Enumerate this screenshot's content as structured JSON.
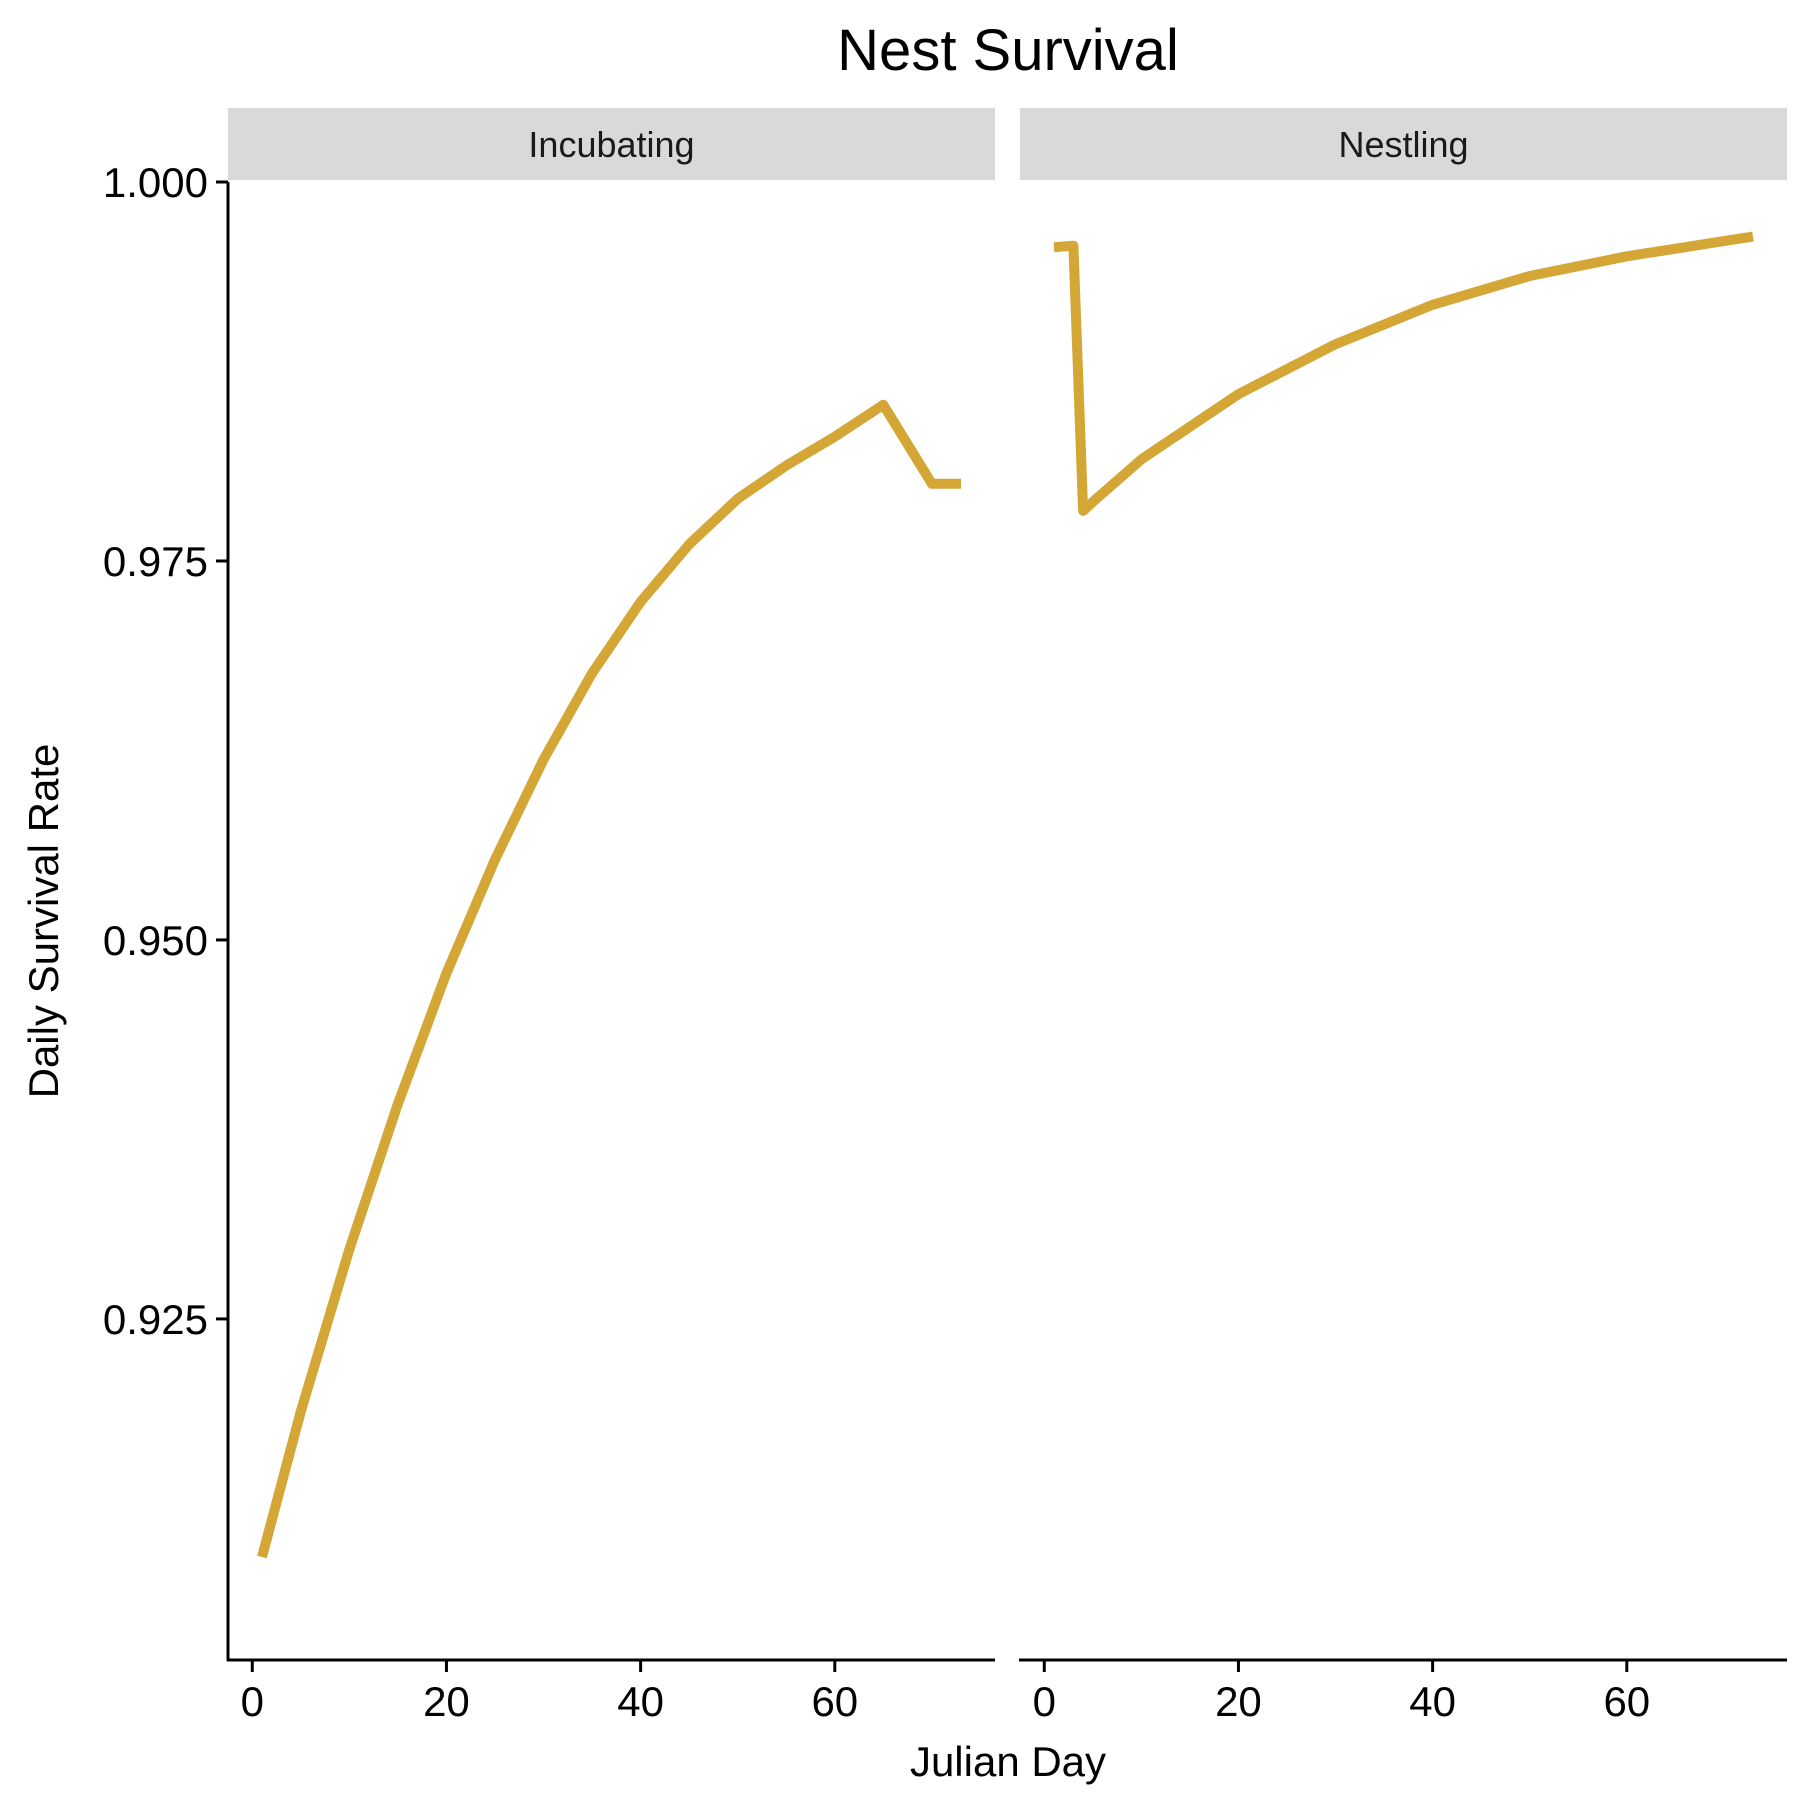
{
  "chart_data": {
    "type": "line",
    "title": "Nest Survival",
    "xlabel": "Julian Day",
    "ylabel": "Daily Survival Rate",
    "xlim": [
      -2.5,
      76.5
    ],
    "ylim": [
      0.9025,
      1.0
    ],
    "x_ticks": [
      0,
      20,
      40,
      60
    ],
    "x_tick_labels": [
      "0",
      "20",
      "40",
      "60"
    ],
    "y_ticks": [
      0.925,
      0.95,
      0.975,
      1.0
    ],
    "y_tick_labels": [
      "0.925",
      "0.950",
      "0.975",
      "1.000"
    ],
    "grid": false,
    "line_color": "#D4A635",
    "strip_color": "#D9D9D9",
    "panels": [
      {
        "label": "Incubating",
        "x": [
          1,
          5,
          10,
          15,
          20,
          25,
          30,
          35,
          40,
          45,
          50,
          55,
          60,
          65,
          70,
          73
        ],
        "y": [
          0.9093,
          0.9189,
          0.9296,
          0.9392,
          0.9478,
          0.9553,
          0.9619,
          0.9676,
          0.9723,
          0.9761,
          0.9791,
          0.9813,
          0.9832,
          0.9853,
          0.9801,
          0.9801
        ]
      },
      {
        "label": "Nestling",
        "x": [
          1,
          3,
          4,
          5,
          10,
          20,
          30,
          40,
          50,
          60,
          70,
          73
        ],
        "y": [
          0.9957,
          0.9958,
          0.9783,
          0.9789,
          0.9817,
          0.986,
          0.9893,
          0.9919,
          0.9938,
          0.9951,
          0.9961,
          0.9964
        ]
      }
    ]
  }
}
